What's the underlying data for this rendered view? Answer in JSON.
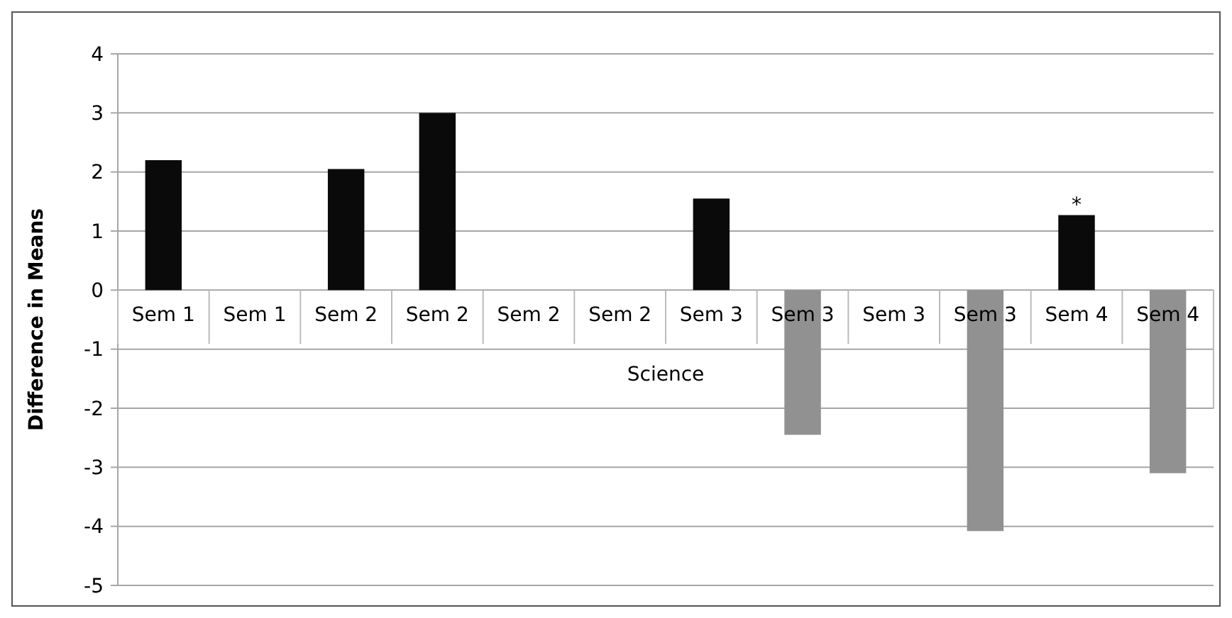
{
  "chart_data": {
    "type": "bar",
    "ylabel": "Difference in Means",
    "categories": [
      "Sem 1",
      "Sem 1",
      "Sem 2",
      "Sem 2",
      "Sem 2",
      "Sem 2",
      "Sem 3",
      "Sem 3",
      "Sem 3",
      "Sem 3",
      "Sem 4",
      "Sem 4"
    ],
    "values": [
      2.2,
      null,
      2.05,
      3.0,
      null,
      null,
      1.55,
      -2.45,
      null,
      -4.08,
      1.27,
      -3.1
    ],
    "colors": [
      "#0a0a0a",
      null,
      "#0a0a0a",
      "#0a0a0a",
      null,
      null,
      "#0a0a0a",
      "#919191",
      null,
      "#919191",
      "#0a0a0a",
      "#919191"
    ],
    "ylim": [
      -5,
      4
    ],
    "yticks": [
      -5,
      -4,
      -3,
      -2,
      -1,
      0,
      1,
      2,
      3,
      4
    ],
    "grid": "y",
    "annotations": [
      "Science",
      {
        "text": "*",
        "x": "Sem 4",
        "y": 1.27
      }
    ]
  }
}
